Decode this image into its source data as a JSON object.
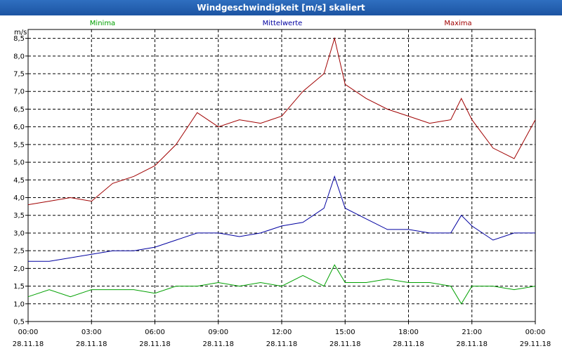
{
  "window": {
    "title": "Windgeschwindigkeit [m/s] skaliert"
  },
  "chart_data": {
    "type": "line",
    "title": "Windgeschwindigkeit [m/s] skaliert",
    "ylabel": "m/s",
    "ylim": [
      0.5,
      8.75
    ],
    "yticks": [
      "0,5",
      "1,0",
      "1,5",
      "2,0",
      "2,5",
      "3,0",
      "3,5",
      "4,0",
      "4,5",
      "5,0",
      "5,5",
      "6,0",
      "6,5",
      "7,0",
      "7,5",
      "8,0",
      "8,5"
    ],
    "xlim": [
      0,
      24
    ],
    "xticks": [
      {
        "time": "00:00",
        "date": "28.11.18"
      },
      {
        "time": "03:00",
        "date": "28.11.18"
      },
      {
        "time": "06:00",
        "date": "28.11.18"
      },
      {
        "time": "09:00",
        "date": "28.11.18"
      },
      {
        "time": "12:00",
        "date": "28.11.18"
      },
      {
        "time": "15:00",
        "date": "28.11.18"
      },
      {
        "time": "18:00",
        "date": "28.11.18"
      },
      {
        "time": "21:00",
        "date": "28.11.18"
      },
      {
        "time": "00:00",
        "date": "29.11.18"
      }
    ],
    "series": [
      {
        "name": "Minima",
        "color": "#00a000",
        "x": [
          0,
          1,
          2,
          3,
          4,
          5,
          6,
          7,
          8,
          9,
          10,
          11,
          12,
          13,
          14,
          14.5,
          15,
          16,
          17,
          18,
          19,
          20,
          20.5,
          21,
          22,
          23,
          24
        ],
        "values": [
          1.2,
          1.4,
          1.2,
          1.4,
          1.4,
          1.4,
          1.3,
          1.5,
          1.5,
          1.6,
          1.5,
          1.6,
          1.5,
          1.8,
          1.5,
          2.1,
          1.6,
          1.6,
          1.7,
          1.6,
          1.6,
          1.5,
          1.0,
          1.5,
          1.5,
          1.4,
          1.5
        ]
      },
      {
        "name": "Mittelwerte",
        "color": "#0000a0",
        "x": [
          0,
          1,
          2,
          3,
          4,
          5,
          6,
          7,
          8,
          9,
          10,
          11,
          12,
          13,
          14,
          14.5,
          15,
          16,
          17,
          18,
          19,
          20,
          20.5,
          21,
          22,
          23,
          24
        ],
        "values": [
          2.2,
          2.2,
          2.3,
          2.4,
          2.5,
          2.5,
          2.6,
          2.8,
          3.0,
          3.0,
          2.9,
          3.0,
          3.2,
          3.3,
          3.7,
          4.6,
          3.7,
          3.4,
          3.1,
          3.1,
          3.0,
          3.0,
          3.5,
          3.2,
          2.8,
          3.0,
          3.0
        ]
      },
      {
        "name": "Maxima",
        "color": "#a00000",
        "x": [
          0,
          1,
          2,
          3,
          4,
          5,
          6,
          7,
          8,
          9,
          10,
          11,
          12,
          13,
          14,
          14.5,
          15,
          16,
          17,
          18,
          19,
          20,
          20.5,
          21,
          22,
          23,
          24
        ],
        "values": [
          3.8,
          3.9,
          4.0,
          3.9,
          4.4,
          4.6,
          4.9,
          5.5,
          6.4,
          6.0,
          6.2,
          6.1,
          6.3,
          7.0,
          7.5,
          8.5,
          7.2,
          6.8,
          6.5,
          6.3,
          6.1,
          6.2,
          6.8,
          6.2,
          5.4,
          5.1,
          6.2
        ]
      }
    ],
    "legend": "top"
  }
}
